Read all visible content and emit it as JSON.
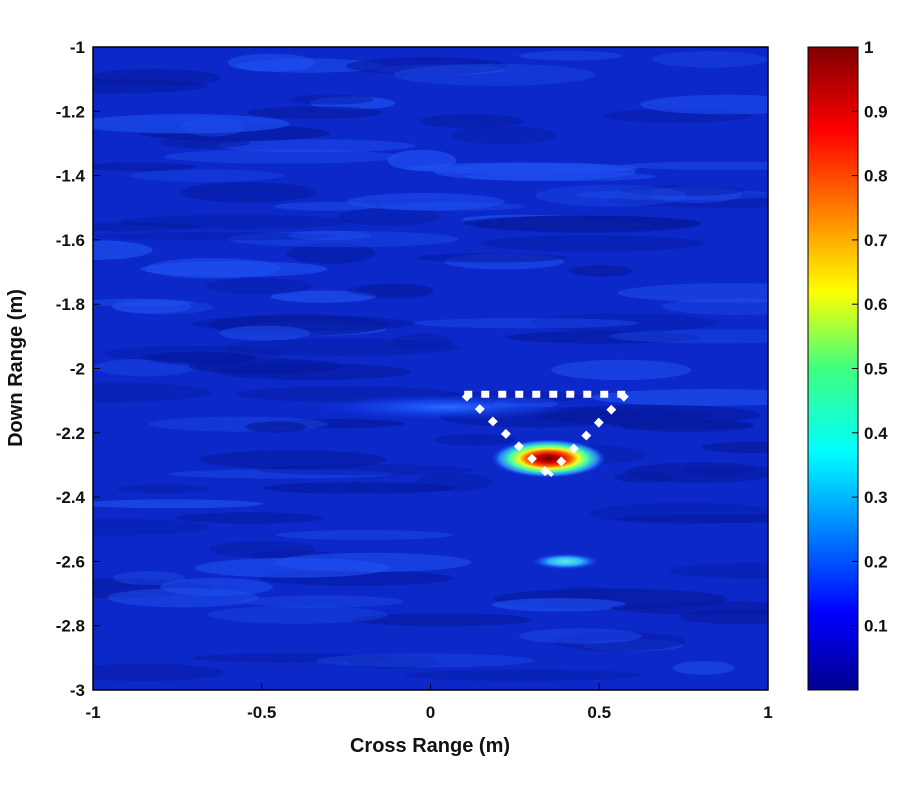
{
  "chart_data": {
    "type": "heatmap",
    "title": "",
    "xlabel": "Cross Range (m)",
    "ylabel": "Down Range (m)",
    "xlim": [
      -1,
      1
    ],
    "ylim": [
      -3,
      -1
    ],
    "xticks": [
      "-1",
      "-0.5",
      "0",
      "0.5",
      "1"
    ],
    "yticks": [
      "-1",
      "-1.2",
      "-1.4",
      "-1.6",
      "-1.8",
      "-2",
      "-2.2",
      "-2.4",
      "-2.6",
      "-2.8",
      "-3"
    ],
    "colormap": "jet",
    "clim": [
      0,
      1
    ],
    "colorbar_ticks": [
      "1",
      "0.9",
      "0.8",
      "0.7",
      "0.6",
      "0.5",
      "0.4",
      "0.3",
      "0.2",
      "0.1"
    ],
    "background_level": 0.08,
    "hotspots": [
      {
        "x": 0.35,
        "y": -2.28,
        "value": 1.0,
        "x_extent": 0.17,
        "y_extent": 0.06
      },
      {
        "x": 0.4,
        "y": -2.6,
        "value": 0.35,
        "x_extent": 0.1,
        "y_extent": 0.025
      },
      {
        "x": 0.05,
        "y": -2.12,
        "value": 0.2,
        "x_extent": 0.4,
        "y_extent": 0.04
      }
    ],
    "overlay_triangle": {
      "style": "white dotted",
      "vertices": [
        [
          0.1,
          -2.08
        ],
        [
          0.58,
          -2.08
        ],
        [
          0.35,
          -2.33
        ]
      ]
    }
  }
}
